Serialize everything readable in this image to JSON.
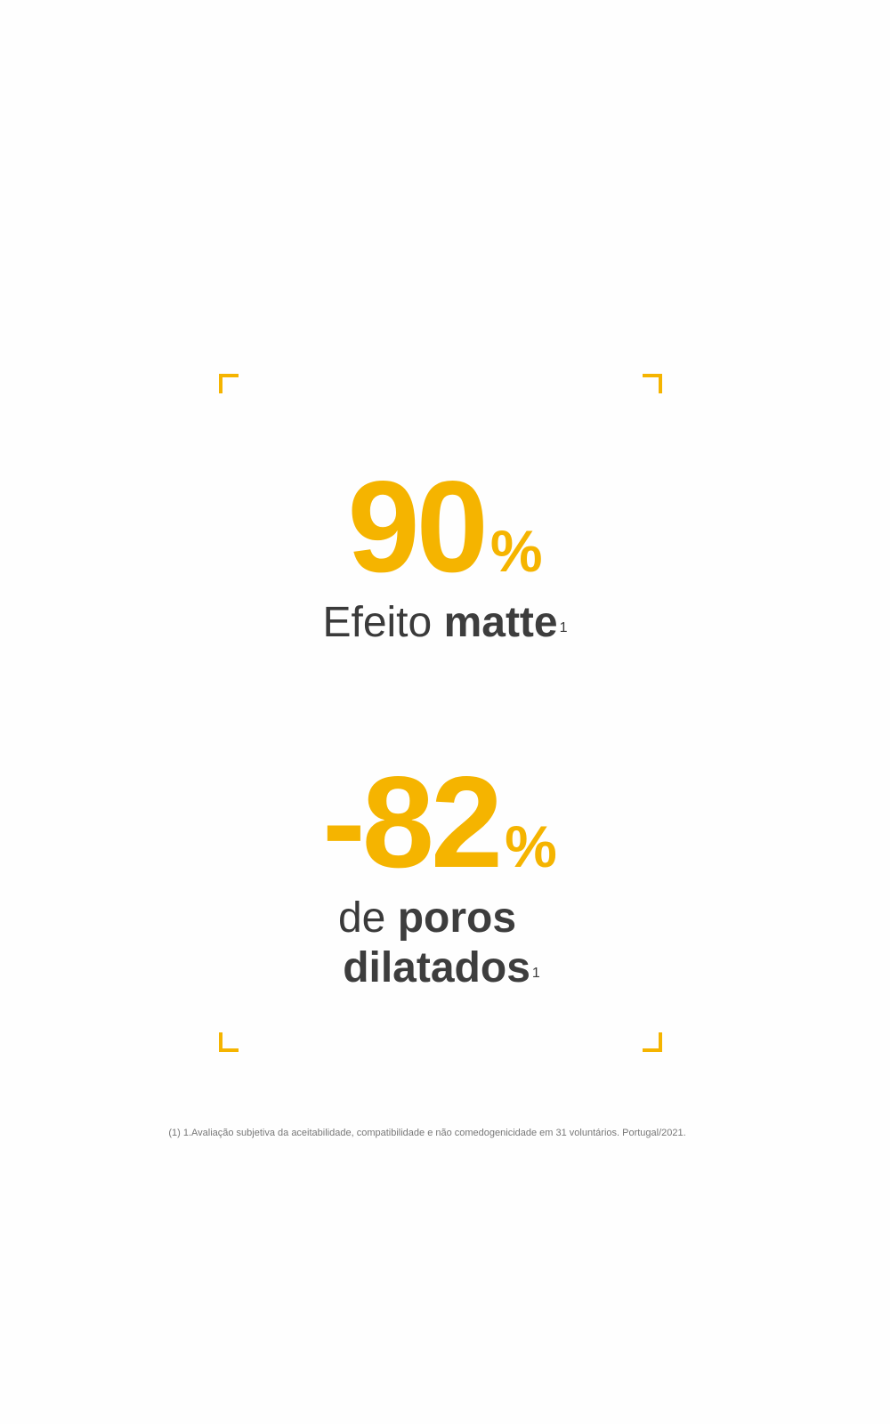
{
  "accent_color": "#F5B400",
  "stats": [
    {
      "value": "90",
      "unit": "%",
      "label_light": "Efeito",
      "label_bold": "matte",
      "footnote_ref": "1"
    },
    {
      "value": "-82",
      "unit": "%",
      "label_light": "de",
      "label_bold_line1": "poros",
      "label_bold_line2": "dilatados",
      "footnote_ref": "1"
    }
  ],
  "footnote": "(1) 1.Avaliação subjetiva da aceitabilidade, compatibilidade e não comedogenicidade em 31 voluntários. Portugal/2021."
}
